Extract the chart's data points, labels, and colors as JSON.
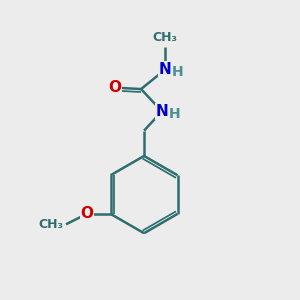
{
  "background_color": "#ececec",
  "bond_color": "#2d6e6e",
  "bond_width": 1.8,
  "atom_colors": {
    "O": "#cc0000",
    "N": "#0000cc",
    "H": "#4a9090",
    "C": "#2d6e6e"
  },
  "font_size_atom": 11,
  "font_size_H": 10,
  "font_size_ch3": 9
}
